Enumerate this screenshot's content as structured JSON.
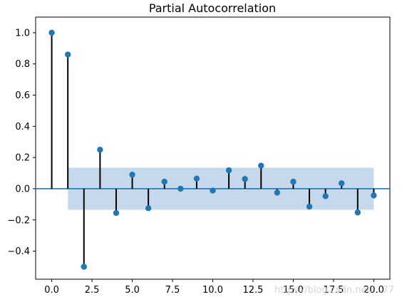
{
  "chart_data": {
    "type": "scatter",
    "title": "Partial Autocorrelation",
    "xlabel": "",
    "ylabel": "",
    "xlim": [
      -1,
      21
    ],
    "ylim": [
      -0.58,
      1.1
    ],
    "x_ticks": [
      0,
      2.5,
      5,
      7.5,
      10,
      12.5,
      15,
      17.5,
      20
    ],
    "x_tick_labels": [
      "0.0",
      "2.5",
      "5.0",
      "7.5",
      "10.0",
      "12.5",
      "15.0",
      "17.5",
      "20.0"
    ],
    "y_ticks": [
      -0.4,
      -0.2,
      0,
      0.2,
      0.4,
      0.6,
      0.8,
      1.0
    ],
    "y_tick_labels": [
      "−0.4",
      "−0.2",
      "0.0",
      "0.2",
      "0.4",
      "0.6",
      "0.8",
      "1.0"
    ],
    "grid": false,
    "series": [
      {
        "x": [
          0,
          1,
          2,
          3,
          4,
          5,
          6,
          7,
          8,
          9,
          10,
          11,
          12,
          13,
          14,
          15,
          16,
          17,
          18,
          19,
          20
        ],
        "values": [
          1.0,
          0.86,
          -0.5,
          0.25,
          -0.155,
          0.09,
          -0.125,
          0.045,
          0.0,
          0.065,
          -0.012,
          0.118,
          0.062,
          0.148,
          -0.025,
          0.045,
          -0.115,
          -0.048,
          0.035,
          -0.152,
          -0.043
        ]
      }
    ],
    "confidence_band": {
      "x_range": [
        1,
        20
      ],
      "upper": 0.135,
      "lower": -0.135
    },
    "colors": {
      "marker": "#1f77b4",
      "stem": "#000000",
      "zero_line": "#1f77b4",
      "band": "#c6d9ec"
    }
  },
  "watermark": "https://blog.csdn.net/...77"
}
